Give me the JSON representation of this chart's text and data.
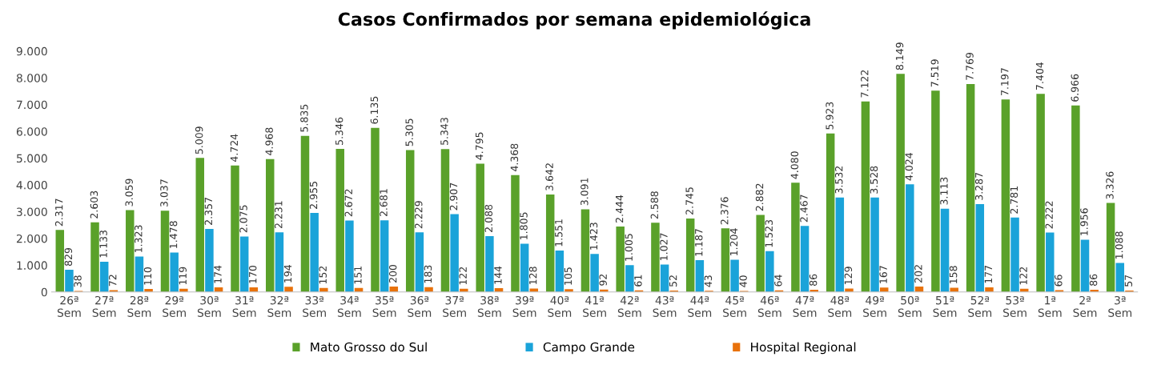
{
  "chart_data": {
    "type": "bar",
    "title": "Casos Confirmados por semana epidemiológica",
    "categories": [
      "26ª\nSem",
      "27ª\nSem",
      "28ª\nSem",
      "29ª\nSem",
      "30ª\nSem",
      "31ª\nSem",
      "32ª\nSem",
      "33ª\nSem",
      "34ª\nSem",
      "35ª\nSem",
      "36ª\nSem",
      "37ª\nSem",
      "38ª\nSem",
      "39ª\nSem",
      "40ª\nSem",
      "41ª\nSem",
      "42ª\nSem",
      "43ª\nSem",
      "44ª\nSem",
      "45ª\nSem",
      "46ª\nSem",
      "47ª\nSem",
      "48ª\nSem",
      "49ª\nSem",
      "50ª\nSem",
      "51ª\nSem",
      "52ª\nSem",
      "53ª\nSem",
      "1ª\nSem",
      "2ª\nSem",
      "3ª\nSem"
    ],
    "series": [
      {
        "name": "Mato Grosso do Sul",
        "color": "#5aa12a",
        "values": [
          2317,
          2603,
          3059,
          3037,
          5009,
          4724,
          4968,
          5835,
          5346,
          6135,
          5305,
          5343,
          4795,
          4368,
          3642,
          3091,
          2444,
          2588,
          2745,
          2376,
          2882,
          4080,
          5923,
          7122,
          8149,
          7519,
          7769,
          7197,
          7404,
          6966,
          3326
        ],
        "value_labels": [
          "2.317",
          "2.603",
          "3.059",
          "3.037",
          "5.009",
          "4.724",
          "4.968",
          "5.835",
          "5.346",
          "6.135",
          "5.305",
          "5.343",
          "4.795",
          "4.368",
          "3.642",
          "3.091",
          "2.444",
          "2.588",
          "2.745",
          "2.376",
          "2.882",
          "4.080",
          "5.923",
          "7.122",
          "8.149",
          "7.519",
          "7.769",
          "7.197",
          "7.404",
          "6.966",
          "3.326"
        ]
      },
      {
        "name": "Campo Grande",
        "color": "#1aa3d9",
        "values": [
          829,
          1133,
          1323,
          1478,
          2357,
          2075,
          2231,
          2955,
          2672,
          2681,
          2229,
          2907,
          2088,
          1805,
          1551,
          1423,
          1005,
          1027,
          1187,
          1204,
          1523,
          2467,
          3532,
          3528,
          4024,
          3113,
          3287,
          2781,
          2222,
          1956,
          1088
        ],
        "value_labels": [
          "829",
          "1.133",
          "1.323",
          "1.478",
          "2.357",
          "2.075",
          "2.231",
          "2.955",
          "2.672",
          "2.681",
          "2.229",
          "2.907",
          "2.088",
          "1.805",
          "1.551",
          "1.423",
          "1.005",
          "1.027",
          "1.187",
          "1.204",
          "1.523",
          "2.467",
          "3.532",
          "3.528",
          "4.024",
          "3.113",
          "3.287",
          "2.781",
          "2.222",
          "1.956",
          "1.088"
        ]
      },
      {
        "name": "Hospital Regional",
        "color": "#e8720c",
        "values": [
          38,
          72,
          110,
          119,
          174,
          170,
          194,
          152,
          151,
          200,
          183,
          122,
          144,
          128,
          105,
          92,
          61,
          52,
          43,
          40,
          64,
          86,
          129,
          167,
          202,
          158,
          177,
          122,
          66,
          86,
          57
        ],
        "value_labels": [
          "38",
          "72",
          "110",
          "119",
          "174",
          "170",
          "194",
          "152",
          "151",
          "200",
          "183",
          "122",
          "144",
          "128",
          "105",
          "92",
          "61",
          "52",
          "43",
          "40",
          "64",
          "86",
          "129",
          "167",
          "202",
          "158",
          "177",
          "122",
          "66",
          "86",
          "57"
        ]
      }
    ],
    "ylim": [
      0,
      9000
    ],
    "yticks": [
      {
        "value": 0,
        "label": "0"
      },
      {
        "value": 1000,
        "label": "1.000"
      },
      {
        "value": 2000,
        "label": "2.000"
      },
      {
        "value": 3000,
        "label": "3.000"
      },
      {
        "value": 4000,
        "label": "4.000"
      },
      {
        "value": 5000,
        "label": "5.000"
      },
      {
        "value": 6000,
        "label": "6.000"
      },
      {
        "value": 7000,
        "label": "7.000"
      },
      {
        "value": 8000,
        "label": "8.000"
      },
      {
        "value": 9000,
        "label": "9.000"
      }
    ],
    "grid": false,
    "legend": "bottom"
  }
}
